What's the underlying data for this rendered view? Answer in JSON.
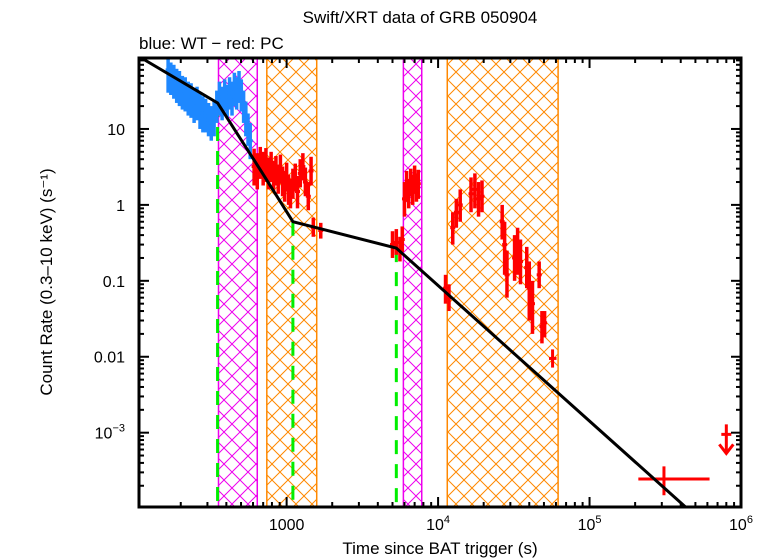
{
  "chart_data": {
    "type": "scatter",
    "title": "Swift/XRT data of GRB 050904",
    "subtitle": "blue: WT − red: PC",
    "xlabel": "Time since BAT trigger (s)",
    "ylabel": "Count Rate (0.3–10 keV) (s⁻¹)",
    "xscale": "log",
    "yscale": "log",
    "xlim": [
      106,
      1000000
    ],
    "ylim": [
      0.000105,
      86
    ],
    "grid": false,
    "x_ticks": [
      {
        "value": 1000,
        "label": "1000"
      },
      {
        "value": 10000,
        "label": "10",
        "sup": "4"
      },
      {
        "value": 100000,
        "label": "10",
        "sup": "5"
      },
      {
        "value": 1000000,
        "label": "10",
        "sup": "6"
      }
    ],
    "y_ticks": [
      {
        "value": 10,
        "label": "10"
      },
      {
        "value": 1,
        "label": "1"
      },
      {
        "value": 0.1,
        "label": "0.1"
      },
      {
        "value": 0.01,
        "label": "0.01"
      },
      {
        "value": 0.001,
        "label": "10",
        "sup": "−3"
      }
    ],
    "colors": {
      "wt": "#1e88ff",
      "pc": "#ff0000",
      "model": "#000000",
      "breaks": "#00ee00",
      "flare_band": "#ee00ee",
      "gap_band": "#ff8800"
    },
    "bands": [
      {
        "name": "flare",
        "x0": 355,
        "x1": 640,
        "color": "flare_band"
      },
      {
        "name": "gap",
        "x0": 740,
        "x1": 1580,
        "color": "gap_band"
      },
      {
        "name": "flare",
        "x0": 5900,
        "x1": 7800,
        "color": "flare_band"
      },
      {
        "name": "gap",
        "x0": 11500,
        "x1": 62000,
        "color": "gap_band"
      }
    ],
    "breaks": [
      350,
      1100,
      5300
    ],
    "model": {
      "name": "broken power-law fit",
      "points": [
        [
          110,
          86
        ],
        [
          350,
          22
        ],
        [
          670,
          2.9
        ],
        [
          1100,
          0.6
        ],
        [
          5300,
          0.27
        ],
        [
          430000,
          0.000105
        ]
      ]
    },
    "series": [
      {
        "name": "WT",
        "color": "wt",
        "points": [
          [
            165,
            60,
            30,
            85
          ],
          [
            172,
            50,
            28,
            75
          ],
          [
            180,
            45,
            25,
            70
          ],
          [
            188,
            40,
            22,
            62
          ],
          [
            196,
            38,
            20,
            58
          ],
          [
            205,
            32,
            18,
            50
          ],
          [
            214,
            30,
            17,
            48
          ],
          [
            224,
            26,
            15,
            42
          ],
          [
            234,
            24,
            14,
            40
          ],
          [
            245,
            20,
            12,
            34
          ],
          [
            256,
            22,
            13,
            36
          ],
          [
            268,
            18,
            10,
            30
          ],
          [
            280,
            16,
            9,
            27
          ],
          [
            292,
            15,
            9,
            25
          ],
          [
            305,
            13,
            8,
            22
          ],
          [
            318,
            12,
            7,
            20
          ],
          [
            332,
            14,
            8,
            23
          ],
          [
            346,
            20,
            12,
            32
          ],
          [
            360,
            26,
            15,
            42
          ],
          [
            375,
            22,
            13,
            36
          ],
          [
            390,
            28,
            17,
            45
          ],
          [
            405,
            24,
            14,
            38
          ],
          [
            420,
            30,
            18,
            48
          ],
          [
            436,
            26,
            15,
            42
          ],
          [
            452,
            34,
            20,
            55
          ],
          [
            468,
            30,
            18,
            48
          ],
          [
            485,
            36,
            22,
            58
          ],
          [
            502,
            28,
            17,
            45
          ],
          [
            520,
            20,
            12,
            32
          ],
          [
            538,
            14,
            8,
            23
          ],
          [
            556,
            10,
            6,
            16
          ],
          [
            575,
            7,
            4,
            12
          ]
        ]
      },
      {
        "name": "PC",
        "color": "pc",
        "points": [
          [
            610,
            3.2,
            1.8,
            5.5
          ],
          [
            640,
            2.8,
            1.6,
            4.8
          ],
          [
            670,
            3.6,
            2.2,
            5.8
          ],
          [
            700,
            3.0,
            1.8,
            5.0
          ],
          [
            730,
            3.4,
            2.0,
            5.6
          ],
          [
            760,
            2.6,
            1.6,
            4.2
          ],
          [
            790,
            3.2,
            2.0,
            5.0
          ],
          [
            820,
            2.4,
            1.5,
            3.8
          ],
          [
            850,
            2.8,
            1.8,
            4.4
          ],
          [
            880,
            2.2,
            1.4,
            3.4
          ],
          [
            910,
            3.0,
            1.9,
            4.6
          ],
          [
            940,
            2.0,
            1.3,
            3.2
          ],
          [
            970,
            1.8,
            1.1,
            2.8
          ],
          [
            1000,
            2.4,
            1.5,
            3.6
          ],
          [
            1030,
            1.6,
            1.0,
            2.5
          ],
          [
            1060,
            1.4,
            0.9,
            2.2
          ],
          [
            1100,
            1.9,
            1.2,
            3.0
          ],
          [
            1140,
            2.3,
            1.5,
            3.5
          ],
          [
            1180,
            1.5,
            0.9,
            2.4
          ],
          [
            1230,
            2.6,
            1.7,
            4.0
          ],
          [
            1280,
            3.2,
            2.1,
            4.8
          ],
          [
            1330,
            2.0,
            1.3,
            3.1
          ],
          [
            1390,
            1.3,
            0.85,
            2.0
          ],
          [
            1450,
            2.8,
            1.8,
            4.3
          ],
          [
            1500,
            0.5,
            0.38,
            0.68
          ],
          [
            1680,
            0.46,
            0.36,
            0.58
          ],
          [
            5000,
            0.3,
            0.2,
            0.45
          ],
          [
            5300,
            0.32,
            0.22,
            0.48
          ],
          [
            5600,
            0.26,
            0.18,
            0.38
          ],
          [
            5800,
            0.35,
            0.24,
            0.52
          ],
          [
            6000,
            1.2,
            0.7,
            2.0
          ],
          [
            6200,
            1.8,
            1.1,
            2.8
          ],
          [
            6400,
            1.4,
            0.9,
            2.2
          ],
          [
            6600,
            2.0,
            1.3,
            3.0
          ],
          [
            6800,
            1.6,
            1.0,
            2.5
          ],
          [
            7000,
            2.2,
            1.4,
            3.3
          ],
          [
            7200,
            1.7,
            1.1,
            2.6
          ],
          [
            7400,
            1.9,
            1.2,
            2.9
          ],
          [
            11200,
            0.08,
            0.05,
            0.12
          ],
          [
            11800,
            0.06,
            0.04,
            0.09
          ],
          [
            12500,
            0.5,
            0.3,
            0.8
          ],
          [
            13200,
            0.8,
            0.5,
            1.2
          ],
          [
            14000,
            1.0,
            0.6,
            1.6
          ],
          [
            16500,
            1.4,
            0.8,
            2.3
          ],
          [
            17500,
            1.6,
            0.9,
            2.6
          ],
          [
            18500,
            1.2,
            0.7,
            2.0
          ],
          [
            19500,
            1.3,
            0.8,
            2.1
          ],
          [
            26500,
            0.6,
            0.35,
            1.0
          ],
          [
            27500,
            0.3,
            0.12,
            0.6
          ],
          [
            28500,
            0.12,
            0.06,
            0.25
          ],
          [
            32000,
            0.2,
            0.1,
            0.4
          ],
          [
            33500,
            0.25,
            0.12,
            0.5
          ],
          [
            35000,
            0.18,
            0.09,
            0.35
          ],
          [
            38500,
            0.15,
            0.08,
            0.28
          ],
          [
            40000,
            0.08,
            0.03,
            0.18
          ],
          [
            42000,
            0.05,
            0.02,
            0.1
          ],
          [
            46500,
            0.12,
            0.08,
            0.18
          ],
          [
            48500,
            0.025,
            0.015,
            0.04
          ],
          [
            50500,
            0.028,
            0.018,
            0.04
          ],
          [
            57000,
            0.0095,
            0.0072,
            0.0125
          ]
        ],
        "xerr": {
          "57000": [
            54000,
            60500
          ]
        }
      },
      {
        "name": "PC late bin",
        "color": "pc",
        "points": [
          [
            310000,
            0.000245,
            0.00015,
            0.00036
          ]
        ],
        "xerr": {
          "310000": [
            210000,
            620000
          ]
        }
      }
    ],
    "upper_limits": [
      {
        "x": 800000,
        "y": 0.00095,
        "color": "pc"
      }
    ]
  }
}
